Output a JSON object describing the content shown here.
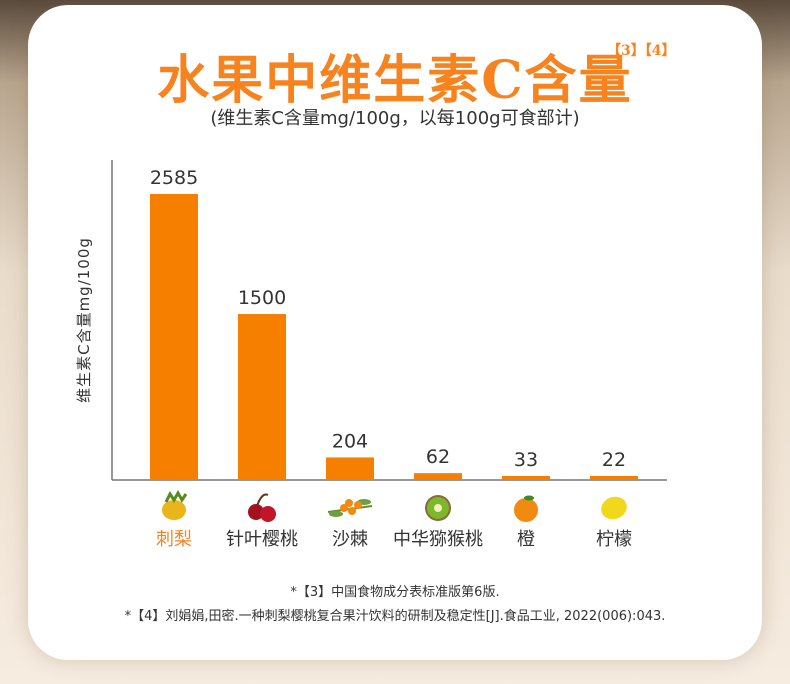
{
  "header": {
    "title": "水果中维生素C含量",
    "refs": "【3】【4】",
    "subtitle": "(维生素C含量mg/100g，以每100g可食部计)"
  },
  "chart_data": {
    "type": "bar",
    "title": "水果中维生素C含量",
    "ylabel": "维生素C含量mg/100g",
    "xlabel": "",
    "categories": [
      "刺梨",
      "针叶樱桃",
      "沙棘",
      "中华猕猴桃",
      "橙",
      "柠檬"
    ],
    "values": [
      2585,
      1500,
      204,
      62,
      33,
      22
    ],
    "value_labels": [
      "2585",
      "1500",
      "204",
      "62",
      "33",
      "22"
    ],
    "highlight_index": 0,
    "icons": [
      "prickly-pear-icon",
      "cherry-icon",
      "sea-buckthorn-icon",
      "kiwi-icon",
      "orange-icon",
      "lemon-icon"
    ],
    "grid": false,
    "ylim": [
      0,
      2585
    ]
  },
  "colors": {
    "bar": "#f77f00",
    "accent": "#f7831f",
    "text": "#333333"
  },
  "footnotes": [
    "*【3】中国食物成分表标准版第6版.",
    "*【4】刘娟娟,田密.一种刺梨樱桃复合果汁饮料的研制及稳定性[J].食品工业, 2022(006):043."
  ]
}
